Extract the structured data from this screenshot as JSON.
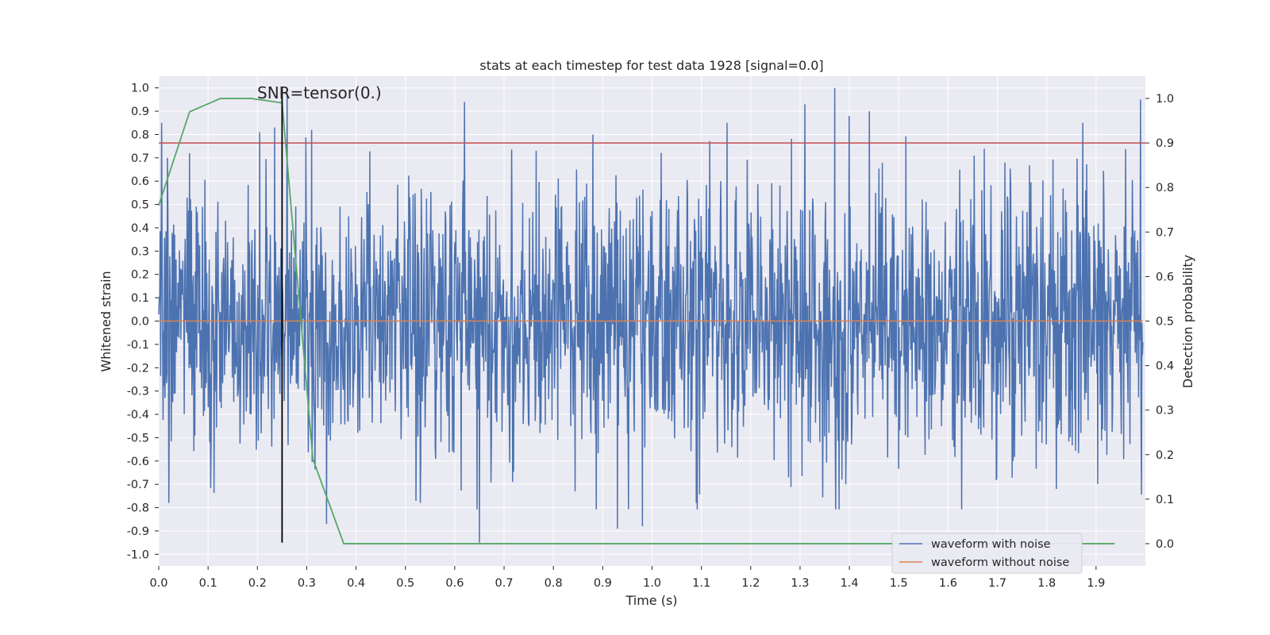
{
  "chart_data": {
    "type": "line",
    "title": "stats at each timestep for test data 1928 [signal=0.0]",
    "xlabel": "Time (s)",
    "ylabel_left": "Whitened strain",
    "ylabel_right": "Detection probability",
    "xlim": [
      0.0,
      2.0
    ],
    "ylim_left": [
      -1.05,
      1.05
    ],
    "ylim_right": [
      -0.05,
      1.05
    ],
    "x_ticks": [
      "0.0",
      "0.1",
      "0.2",
      "0.3",
      "0.4",
      "0.5",
      "0.6",
      "0.7",
      "0.8",
      "0.9",
      "1.0",
      "1.1",
      "1.2",
      "1.3",
      "1.4",
      "1.5",
      "1.6",
      "1.7",
      "1.8",
      "1.9"
    ],
    "y_ticks_left": [
      "1.0",
      "0.9",
      "0.8",
      "0.7",
      "0.6",
      "0.5",
      "0.4",
      "0.3",
      "0.2",
      "0.1",
      "0.0",
      "-0.1",
      "-0.2",
      "-0.3",
      "-0.4",
      "-0.5",
      "-0.6",
      "-0.7",
      "-0.8",
      "-0.9",
      "-1.0"
    ],
    "y_ticks_right": [
      "1.0",
      "0.9",
      "0.8",
      "0.7",
      "0.6",
      "0.5",
      "0.4",
      "0.3",
      "0.2",
      "0.1",
      "0.0"
    ],
    "annotation": "SNR=tensor(0.)",
    "threshold_line": {
      "axis": "right",
      "value": 0.9,
      "color": "#c44e52"
    },
    "vertical_marker": {
      "x": 0.25,
      "y_from": -0.95,
      "y_to": 1.0,
      "color": "#000000"
    },
    "series": [
      {
        "name": "waveform with noise",
        "axis": "left",
        "color": "#4c72b0",
        "kind": "noise",
        "samples": 2048,
        "x_range": [
          0.0,
          1.995
        ],
        "approx_std": 0.28,
        "min": -0.95,
        "max": 1.0,
        "notable_peaks": [
          {
            "x": 0.018,
            "y": 0.7
          },
          {
            "x": 0.062,
            "y": 0.72
          },
          {
            "x": 0.205,
            "y": 0.81
          },
          {
            "x": 0.235,
            "y": 0.83
          },
          {
            "x": 0.26,
            "y": 0.98
          },
          {
            "x": 0.31,
            "y": 0.82
          },
          {
            "x": 0.62,
            "y": 0.94
          },
          {
            "x": 0.88,
            "y": 0.8
          },
          {
            "x": 1.31,
            "y": 0.93
          },
          {
            "x": 1.37,
            "y": 1.0
          },
          {
            "x": 1.4,
            "y": 0.88
          },
          {
            "x": 1.44,
            "y": 0.9
          },
          {
            "x": 1.99,
            "y": 0.95
          }
        ],
        "notable_troughs": [
          {
            "x": 0.02,
            "y": -0.78
          },
          {
            "x": 0.34,
            "y": -0.87
          },
          {
            "x": 0.53,
            "y": -0.78
          },
          {
            "x": 0.65,
            "y": -0.95
          },
          {
            "x": 0.93,
            "y": -0.89
          },
          {
            "x": 0.98,
            "y": -0.88
          },
          {
            "x": 1.09,
            "y": -0.78
          },
          {
            "x": 1.82,
            "y": -0.72
          }
        ]
      },
      {
        "name": "waveform without noise",
        "axis": "left",
        "color": "#dd8452",
        "x": [
          0.0,
          1.995
        ],
        "y": [
          0.0,
          0.0
        ]
      },
      {
        "name": "detection probability",
        "axis": "right",
        "color": "#55a868",
        "show_in_legend": false,
        "x": [
          0.0,
          0.0625,
          0.125,
          0.1875,
          0.25,
          0.3125,
          0.375,
          0.4375,
          0.5,
          1.0,
          1.5,
          1.9375
        ],
        "y": [
          0.76,
          0.97,
          1.0,
          1.0,
          0.99,
          0.19,
          0.0,
          0.0,
          0.0,
          0.0,
          0.0,
          0.0
        ]
      }
    ],
    "legend": {
      "location": "lower right",
      "entries": [
        {
          "label": "waveform with noise",
          "color": "#4c72b0"
        },
        {
          "label": "waveform without noise",
          "color": "#dd8452"
        }
      ]
    },
    "style": {
      "axes_facecolor": "#eaeaf2",
      "grid_color": "#ffffff",
      "grid": true
    }
  }
}
